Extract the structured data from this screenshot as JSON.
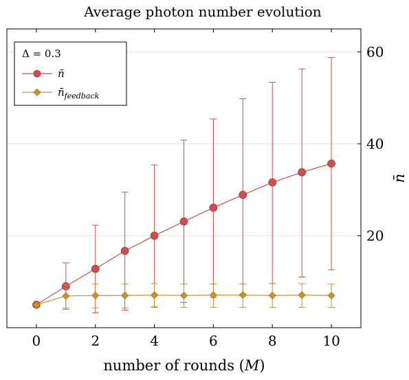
{
  "chart_data": {
    "type": "line",
    "title": "Average photon number evolution",
    "xlabel": "number of rounds (M)",
    "ylabel": "n̄",
    "x": [
      0,
      1,
      2,
      3,
      4,
      5,
      6,
      7,
      8,
      9,
      10
    ],
    "xlim": [
      -1,
      11
    ],
    "ylim": [
      0,
      65
    ],
    "x_ticks": [
      0,
      2,
      4,
      6,
      8,
      10
    ],
    "y_ticks": [
      20,
      40,
      60
    ],
    "y_axis_side": "right",
    "grid": "horizontal",
    "legend": {
      "position": "top-left",
      "header": "Δ = 0.3"
    },
    "series": [
      {
        "name": "n̄",
        "color": "#c94f50",
        "marker": "circle",
        "values": [
          5.0,
          9.0,
          12.8,
          16.7,
          20.0,
          23.1,
          26.1,
          28.9,
          31.6,
          33.8,
          35.7
        ],
        "err_low": [
          5.0,
          4.0,
          3.2,
          3.8,
          4.5,
          5.5,
          6.6,
          7.3,
          9.6,
          11.0,
          12.6
        ],
        "err_high": [
          5.0,
          14.1,
          22.3,
          29.5,
          35.4,
          40.8,
          45.4,
          49.8,
          53.4,
          56.3,
          58.8
        ]
      },
      {
        "name": "n̄feedback",
        "color": "#c8922f",
        "marker": "diamond",
        "values": [
          5.0,
          6.9,
          7.0,
          7.0,
          7.1,
          7.0,
          7.1,
          7.1,
          7.0,
          7.1,
          7.0
        ],
        "err_low": [
          5.0,
          4.3,
          4.3,
          4.3,
          4.4,
          4.4,
          4.4,
          4.4,
          4.4,
          4.4,
          4.4
        ],
        "err_high": [
          5.0,
          9.4,
          9.5,
          9.5,
          9.6,
          9.5,
          9.5,
          9.5,
          9.6,
          9.6,
          9.5
        ]
      }
    ]
  }
}
